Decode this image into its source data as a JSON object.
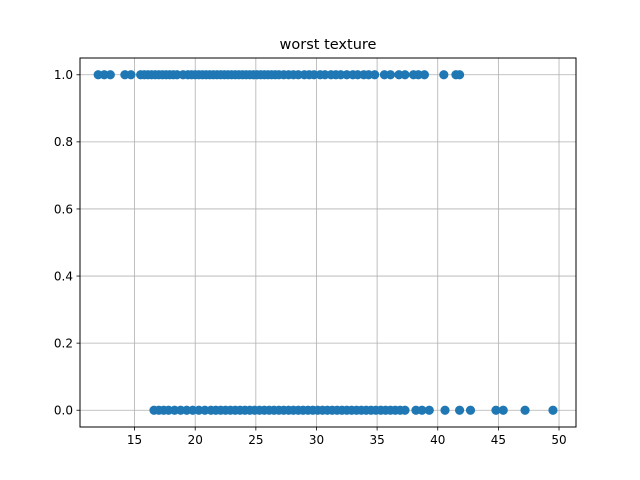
{
  "chart_data": {
    "type": "scatter",
    "title": "worst texture",
    "xlabel": "",
    "ylabel": "",
    "xlim": [
      10.5,
      51.4
    ],
    "ylim": [
      -0.05,
      1.05
    ],
    "x_ticks": [
      15,
      20,
      25,
      30,
      35,
      40,
      45,
      50
    ],
    "y_ticks": [
      0.0,
      0.2,
      0.4,
      0.6,
      0.8,
      1.0
    ],
    "grid": true,
    "marker_color": "#1f77b4",
    "series": [
      {
        "x": [
          12.0,
          12.5,
          13.0,
          14.2,
          14.7,
          15.5,
          15.8,
          16.1,
          16.4,
          16.7,
          17.0,
          17.3,
          17.6,
          17.9,
          18.2,
          18.5,
          19.0,
          19.4,
          19.7,
          20.0,
          20.3,
          20.6,
          20.9,
          21.2,
          21.5,
          21.8,
          22.1,
          22.4,
          22.7,
          23.0,
          23.3,
          23.6,
          23.9,
          24.2,
          24.5,
          24.8,
          25.1,
          25.4,
          25.7,
          26.0,
          26.3,
          26.6,
          26.9,
          27.3,
          27.7,
          28.1,
          28.5,
          29.0,
          29.4,
          29.8,
          30.3,
          30.7,
          31.2,
          31.6,
          32.0,
          32.5,
          33.0,
          33.4,
          33.9,
          34.3,
          34.8,
          35.6,
          36.1,
          36.8,
          37.3,
          38.0,
          38.4,
          38.9,
          40.5,
          41.5,
          41.8
        ],
        "y": [
          1,
          1,
          1,
          1,
          1,
          1,
          1,
          1,
          1,
          1,
          1,
          1,
          1,
          1,
          1,
          1,
          1,
          1,
          1,
          1,
          1,
          1,
          1,
          1,
          1,
          1,
          1,
          1,
          1,
          1,
          1,
          1,
          1,
          1,
          1,
          1,
          1,
          1,
          1,
          1,
          1,
          1,
          1,
          1,
          1,
          1,
          1,
          1,
          1,
          1,
          1,
          1,
          1,
          1,
          1,
          1,
          1,
          1,
          1,
          1,
          1,
          1,
          1,
          1,
          1,
          1,
          1,
          1,
          1,
          1,
          1
        ]
      },
      {
        "x": [
          16.6,
          17.0,
          17.4,
          17.8,
          18.3,
          18.8,
          19.3,
          19.8,
          20.3,
          20.8,
          21.3,
          21.7,
          22.1,
          22.5,
          22.9,
          23.3,
          23.7,
          24.1,
          24.5,
          24.9,
          25.3,
          25.7,
          26.1,
          26.5,
          26.9,
          27.3,
          27.7,
          28.1,
          28.5,
          28.9,
          29.3,
          29.7,
          30.1,
          30.5,
          30.9,
          31.3,
          31.7,
          32.1,
          32.5,
          32.9,
          33.3,
          33.7,
          34.1,
          34.5,
          34.9,
          35.3,
          35.7,
          36.1,
          36.5,
          36.9,
          37.3,
          38.2,
          38.7,
          39.3,
          40.6,
          41.8,
          42.7,
          44.8,
          45.4,
          47.2,
          49.5
        ],
        "y": [
          0,
          0,
          0,
          0,
          0,
          0,
          0,
          0,
          0,
          0,
          0,
          0,
          0,
          0,
          0,
          0,
          0,
          0,
          0,
          0,
          0,
          0,
          0,
          0,
          0,
          0,
          0,
          0,
          0,
          0,
          0,
          0,
          0,
          0,
          0,
          0,
          0,
          0,
          0,
          0,
          0,
          0,
          0,
          0,
          0,
          0,
          0,
          0,
          0,
          0,
          0,
          0,
          0,
          0,
          0,
          0,
          0,
          0,
          0,
          0,
          0
        ]
      }
    ]
  }
}
